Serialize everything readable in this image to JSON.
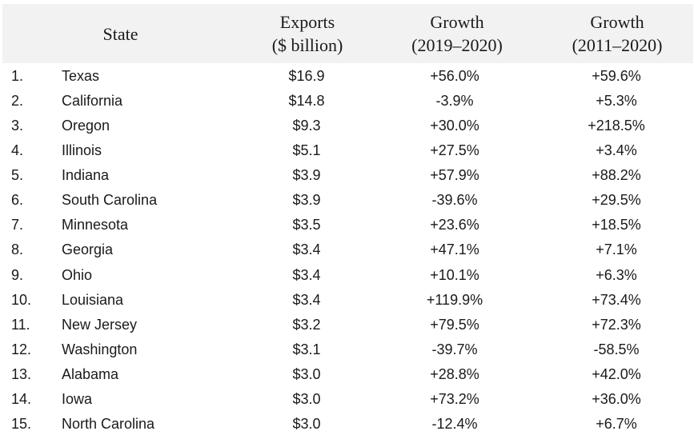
{
  "chart_data": {
    "type": "table",
    "columns": [
      {
        "key": "state",
        "lines": [
          "State"
        ]
      },
      {
        "key": "exports",
        "lines": [
          "Exports",
          "($ billion)"
        ]
      },
      {
        "key": "growth_2019_2020",
        "lines": [
          "Growth",
          "(2019–2020)"
        ]
      },
      {
        "key": "growth_2011_2020",
        "lines": [
          "Growth",
          "(2011–2020)"
        ]
      }
    ],
    "rows": [
      {
        "rank": "1.",
        "state": "Texas",
        "exports": "$16.9",
        "growth_2019_2020": "+56.0%",
        "growth_2011_2020": "+59.6%"
      },
      {
        "rank": "2.",
        "state": "California",
        "exports": "$14.8",
        "growth_2019_2020": "-3.9%",
        "growth_2011_2020": "+5.3%"
      },
      {
        "rank": "3.",
        "state": "Oregon",
        "exports": "$9.3",
        "growth_2019_2020": "+30.0%",
        "growth_2011_2020": "+218.5%"
      },
      {
        "rank": "4.",
        "state": "Illinois",
        "exports": "$5.1",
        "growth_2019_2020": "+27.5%",
        "growth_2011_2020": "+3.4%"
      },
      {
        "rank": "5.",
        "state": "Indiana",
        "exports": "$3.9",
        "growth_2019_2020": "+57.9%",
        "growth_2011_2020": "+88.2%"
      },
      {
        "rank": "6.",
        "state": "South Carolina",
        "exports": "$3.9",
        "growth_2019_2020": "-39.6%",
        "growth_2011_2020": "+29.5%"
      },
      {
        "rank": "7.",
        "state": "Minnesota",
        "exports": "$3.5",
        "growth_2019_2020": "+23.6%",
        "growth_2011_2020": "+18.5%"
      },
      {
        "rank": "8.",
        "state": "Georgia",
        "exports": "$3.4",
        "growth_2019_2020": "+47.1%",
        "growth_2011_2020": "+7.1%"
      },
      {
        "rank": "9.",
        "state": "Ohio",
        "exports": "$3.4",
        "growth_2019_2020": "+10.1%",
        "growth_2011_2020": "+6.3%"
      },
      {
        "rank": "10.",
        "state": "Louisiana",
        "exports": "$3.4",
        "growth_2019_2020": "+119.9%",
        "growth_2011_2020": "+73.4%"
      },
      {
        "rank": "11.",
        "state": "New Jersey",
        "exports": "$3.2",
        "growth_2019_2020": "+79.5%",
        "growth_2011_2020": "+72.3%"
      },
      {
        "rank": "12.",
        "state": "Washington",
        "exports": "$3.1",
        "growth_2019_2020": "-39.7%",
        "growth_2011_2020": "-58.5%"
      },
      {
        "rank": "13.",
        "state": "Alabama",
        "exports": "$3.0",
        "growth_2019_2020": "+28.8%",
        "growth_2011_2020": "+42.0%"
      },
      {
        "rank": "14.",
        "state": "Iowa",
        "exports": "$3.0",
        "growth_2019_2020": "+73.2%",
        "growth_2011_2020": "+36.0%"
      },
      {
        "rank": "15.",
        "state": "North Carolina",
        "exports": "$3.0",
        "growth_2019_2020": "-12.4%",
        "growth_2011_2020": "+6.7%"
      }
    ],
    "header_background": "#f2f2f2"
  }
}
